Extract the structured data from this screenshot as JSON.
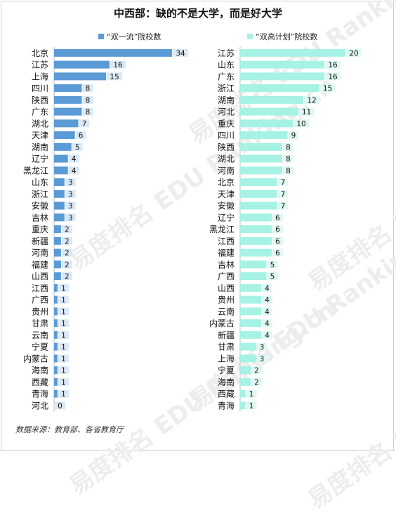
{
  "title": "中西部：缺的不是大学，而是好大学",
  "source": "数据来源：教育部、各省教育厅",
  "watermark": "易度排名 EDU Ranking.cn",
  "colors": {
    "left_bar": "#5b9bd5",
    "right_bar": "#a6f2e4",
    "value_box": "#dbe9f6",
    "value_box_right": "#dff8f2"
  },
  "chart_data": [
    {
      "type": "bar",
      "orientation": "horizontal",
      "legend": "“双一流”院校数",
      "legend_position": "top",
      "categories": [
        "北京",
        "江苏",
        "上海",
        "四川",
        "陕西",
        "广东",
        "湖北",
        "天津",
        "湖南",
        "辽宁",
        "黑龙江",
        "山东",
        "浙江",
        "安徽",
        "吉林",
        "重庆",
        "新疆",
        "河南",
        "福建",
        "山西",
        "江西",
        "广西",
        "贵州",
        "甘肃",
        "云南",
        "宁夏",
        "内蒙古",
        "海南",
        "西藏",
        "青海",
        "河北"
      ],
      "values": [
        34,
        16,
        15,
        8,
        8,
        8,
        7,
        6,
        5,
        4,
        4,
        3,
        3,
        3,
        3,
        2,
        2,
        2,
        2,
        2,
        1,
        1,
        1,
        1,
        1,
        1,
        1,
        1,
        1,
        1,
        0
      ],
      "xlim": [
        0,
        34
      ]
    },
    {
      "type": "bar",
      "orientation": "horizontal",
      "legend": "“双高计划”院校数",
      "legend_position": "top",
      "categories": [
        "江苏",
        "山东",
        "广东",
        "浙江",
        "湖南",
        "河北",
        "重庆",
        "四川",
        "陕西",
        "湖北",
        "河南",
        "北京",
        "天津",
        "安徽",
        "辽宁",
        "黑龙江",
        "江西",
        "福建",
        "吉林",
        "广西",
        "山西",
        "贵州",
        "云南",
        "内蒙古",
        "新疆",
        "甘肃",
        "上海",
        "宁夏",
        "海南",
        "西藏",
        "青海"
      ],
      "values": [
        20,
        16,
        16,
        15,
        12,
        11,
        10,
        9,
        8,
        8,
        8,
        7,
        7,
        7,
        6,
        6,
        6,
        6,
        5,
        5,
        4,
        4,
        4,
        4,
        4,
        3,
        3,
        2,
        2,
        1,
        1
      ],
      "xlim": [
        0,
        20
      ]
    }
  ]
}
